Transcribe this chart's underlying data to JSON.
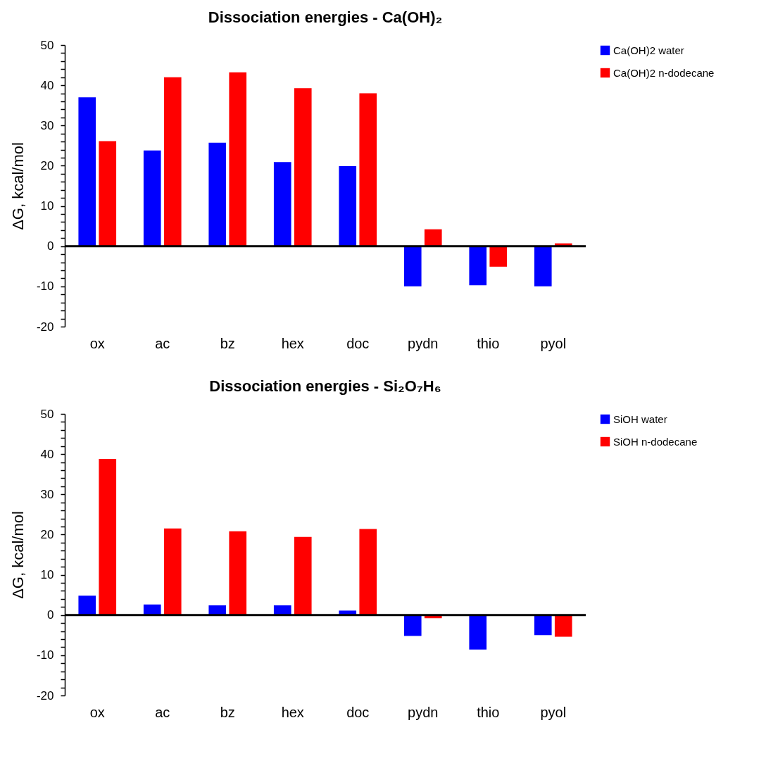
{
  "chart_data": [
    {
      "type": "bar",
      "title": "Dissociation energies - Ca(OH)₂",
      "ylabel": "ΔG, kcal/mol",
      "categories": [
        "ox",
        "ac",
        "bz",
        "hex",
        "doc",
        "pydn",
        "thio",
        "pyol"
      ],
      "series": [
        {
          "name": "Ca(OH)2 water",
          "color": "#0000ff",
          "values": [
            37.0,
            23.8,
            25.7,
            20.9,
            19.9,
            -10.0,
            -9.7,
            -10.0
          ]
        },
        {
          "name": "Ca(OH)2 n-dodecane",
          "color": "#ff0000",
          "values": [
            26.1,
            42.0,
            43.2,
            39.3,
            38.0,
            4.2,
            -5.1,
            0.7
          ]
        }
      ],
      "ylim": [
        -20,
        50
      ],
      "yticks": [
        -20,
        {
          "value": -18,
          "label": null
        },
        {
          "value": -16,
          "label": null
        },
        {
          "value": -14,
          "label": null
        },
        {
          "value": -12,
          "label": null
        },
        -10,
        {
          "value": -8,
          "label": null
        },
        {
          "value": -6,
          "label": null
        },
        {
          "value": -4,
          "label": null
        },
        {
          "value": -2,
          "label": null
        },
        0,
        {
          "value": 2,
          "label": null
        },
        {
          "value": 4,
          "label": null
        },
        {
          "value": 6,
          "label": null
        },
        {
          "value": 8,
          "label": null
        },
        10,
        {
          "value": 12,
          "label": null
        },
        {
          "value": 14,
          "label": null
        },
        {
          "value": 16,
          "label": null
        },
        {
          "value": 18,
          "label": null
        },
        20,
        {
          "value": 22,
          "label": null
        },
        {
          "value": 24,
          "label": null
        },
        {
          "value": 26,
          "label": null
        },
        {
          "value": 28,
          "label": null
        },
        30,
        {
          "value": 32,
          "label": null
        },
        {
          "value": 34,
          "label": null
        },
        {
          "value": 36,
          "label": null
        },
        {
          "value": 38,
          "label": null
        },
        40,
        {
          "value": 42,
          "label": null
        },
        {
          "value": 44,
          "label": null
        },
        {
          "value": 46,
          "label": null
        },
        {
          "value": 48,
          "label": null
        },
        50
      ],
      "ref_lines": [
        {
          "axis": "y",
          "value": 0,
          "color": "#000000"
        }
      ],
      "grid": false,
      "legend": "right"
    },
    {
      "type": "bar",
      "title": "Dissociation energies - Si₂O₇H₆",
      "ylabel": "ΔG, kcal/mol",
      "categories": [
        "ox",
        "ac",
        "bz",
        "hex",
        "doc",
        "pydn",
        "thio",
        "pyol"
      ],
      "series": [
        {
          "name": "SiOH water",
          "color": "#0000ff",
          "values": [
            4.8,
            2.6,
            2.4,
            2.4,
            1.1,
            -5.2,
            -8.6,
            -5.0
          ]
        },
        {
          "name": "SiOH n-dodecane",
          "color": "#ff0000",
          "values": [
            38.8,
            21.5,
            20.8,
            19.4,
            21.4,
            -0.8,
            null,
            -5.4
          ]
        }
      ],
      "ylim": [
        -20,
        50
      ],
      "yticks": [
        -20,
        {
          "value": -18,
          "label": null
        },
        {
          "value": -16,
          "label": null
        },
        {
          "value": -14,
          "label": null
        },
        {
          "value": -12,
          "label": null
        },
        -10,
        {
          "value": -8,
          "label": null
        },
        {
          "value": -6,
          "label": null
        },
        {
          "value": -4,
          "label": null
        },
        {
          "value": -2,
          "label": null
        },
        0,
        {
          "value": 2,
          "label": null
        },
        {
          "value": 4,
          "label": null
        },
        {
          "value": 6,
          "label": null
        },
        {
          "value": 8,
          "label": null
        },
        10,
        {
          "value": 12,
          "label": null
        },
        {
          "value": 14,
          "label": null
        },
        {
          "value": 16,
          "label": null
        },
        {
          "value": 18,
          "label": null
        },
        20,
        {
          "value": 22,
          "label": null
        },
        {
          "value": 24,
          "label": null
        },
        {
          "value": 26,
          "label": null
        },
        {
          "value": 28,
          "label": null
        },
        30,
        {
          "value": 32,
          "label": null
        },
        {
          "value": 34,
          "label": null
        },
        {
          "value": 36,
          "label": null
        },
        {
          "value": 38,
          "label": null
        },
        40,
        {
          "value": 42,
          "label": null
        },
        {
          "value": 44,
          "label": null
        },
        {
          "value": 46,
          "label": null
        },
        {
          "value": 48,
          "label": null
        },
        50
      ],
      "ref_lines": [
        {
          "axis": "y",
          "value": 0,
          "color": "#000000"
        }
      ],
      "grid": false,
      "legend": "right"
    }
  ]
}
